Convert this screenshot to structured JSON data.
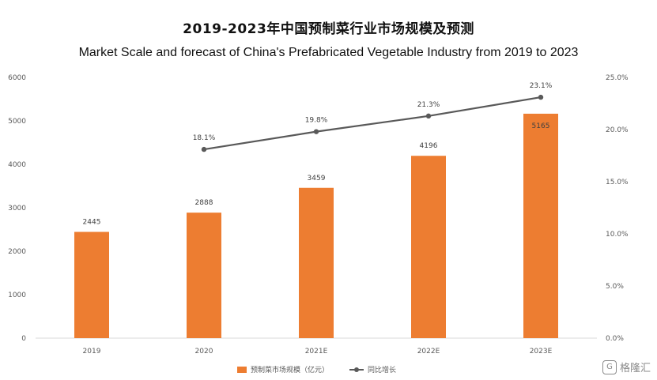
{
  "chart_data": {
    "type": "bar",
    "title": "2019-2023年中国预制菜行业市场规模及预测",
    "subtitle": "Market Scale and forecast of China's Prefabricated Vegetable Industry from 2019 to 2023",
    "categories": [
      "2019",
      "2020",
      "2021E",
      "2022E",
      "2023E"
    ],
    "series": [
      {
        "name": "预制菜市场规模（亿元）",
        "type": "bar",
        "axis": "left",
        "values": [
          2445,
          2888,
          3459,
          4196,
          5165
        ],
        "labels": [
          "2445",
          "2888",
          "3459",
          "4196",
          "5165"
        ]
      },
      {
        "name": "同比增长",
        "type": "line",
        "axis": "right",
        "values": [
          null,
          18.1,
          19.8,
          21.3,
          23.1
        ],
        "labels": [
          "",
          "18.1%",
          "19.8%",
          "21.3%",
          "23.1%"
        ]
      }
    ],
    "ylim": [
      0,
      6000
    ],
    "y_ticks": [
      "0",
      "1000",
      "2000",
      "3000",
      "4000",
      "5000",
      "6000"
    ],
    "y2lim": [
      0,
      25
    ],
    "y2_ticks": [
      "0.0%",
      "5.0%",
      "10.0%",
      "15.0%",
      "20.0%",
      "25.0%"
    ],
    "legend_position": "bottom",
    "grid": false,
    "colors": {
      "bar": "#ED7D31",
      "line": "#595959"
    }
  },
  "watermark": {
    "text": "格隆汇",
    "icon": "glh-logo-icon"
  }
}
